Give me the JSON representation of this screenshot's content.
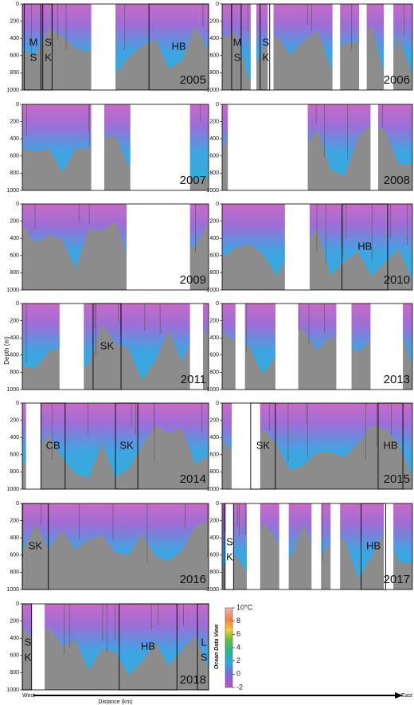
{
  "y_axis_label": "Depth (m)",
  "x_axis_label": "Distance (km)",
  "west": "West",
  "east": "East",
  "ylim": [
    0,
    1000
  ],
  "yticks": [
    0,
    200,
    400,
    600,
    800,
    1000
  ],
  "panels": [
    {
      "year": "2005",
      "regions": [
        "MS",
        "SK",
        "HB"
      ]
    },
    {
      "year": "2006",
      "regions": [
        "MS",
        "SK"
      ]
    },
    {
      "year": "2007",
      "regions": []
    },
    {
      "year": "2008",
      "regions": []
    },
    {
      "year": "2009",
      "regions": []
    },
    {
      "year": "2010",
      "regions": [
        "HB"
      ]
    },
    {
      "year": "2011",
      "regions": [
        "SK"
      ]
    },
    {
      "year": "2013",
      "regions": []
    },
    {
      "year": "2014",
      "regions": [
        "CB",
        "SK"
      ]
    },
    {
      "year": "2015",
      "regions": [
        "SK",
        "HB"
      ]
    },
    {
      "year": "2016",
      "regions": [
        "SK"
      ]
    },
    {
      "year": "2017",
      "regions": [
        "SK",
        "HB"
      ]
    },
    {
      "year": "2018",
      "regions": [
        "SK",
        "HB",
        "LS"
      ]
    }
  ],
  "colorbar": {
    "label": "Ocean Data View",
    "clim": [
      -2,
      10
    ],
    "ticks": [
      {
        "value": 10,
        "label": "10°C"
      },
      8,
      6,
      4,
      2,
      0,
      -2
    ]
  }
}
